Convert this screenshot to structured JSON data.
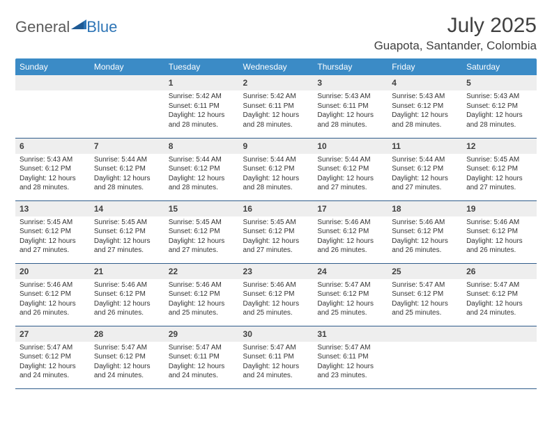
{
  "branding": {
    "word1": "General",
    "word2": "Blue"
  },
  "title": "July 2025",
  "location": "Guapota, Santander, Colombia",
  "colors": {
    "header_bg": "#3b8bc6",
    "header_text": "#ffffff",
    "daynum_bg": "#eeeeee",
    "rule": "#2e5b8a",
    "logo_gray": "#5b5b5b",
    "logo_blue": "#2e75b6",
    "body_text": "#333333",
    "title_text": "#404040"
  },
  "typography": {
    "title_fontsize": 30,
    "location_fontsize": 17,
    "header_fontsize": 12,
    "daynum_fontsize": 12,
    "body_fontsize": 10
  },
  "day_headers": [
    "Sunday",
    "Monday",
    "Tuesday",
    "Wednesday",
    "Thursday",
    "Friday",
    "Saturday"
  ],
  "weeks": [
    [
      {
        "num": "",
        "sunrise": "",
        "sunset": "",
        "daylight": ""
      },
      {
        "num": "",
        "sunrise": "",
        "sunset": "",
        "daylight": ""
      },
      {
        "num": "1",
        "sunrise": "Sunrise: 5:42 AM",
        "sunset": "Sunset: 6:11 PM",
        "daylight": "Daylight: 12 hours and 28 minutes."
      },
      {
        "num": "2",
        "sunrise": "Sunrise: 5:42 AM",
        "sunset": "Sunset: 6:11 PM",
        "daylight": "Daylight: 12 hours and 28 minutes."
      },
      {
        "num": "3",
        "sunrise": "Sunrise: 5:43 AM",
        "sunset": "Sunset: 6:11 PM",
        "daylight": "Daylight: 12 hours and 28 minutes."
      },
      {
        "num": "4",
        "sunrise": "Sunrise: 5:43 AM",
        "sunset": "Sunset: 6:12 PM",
        "daylight": "Daylight: 12 hours and 28 minutes."
      },
      {
        "num": "5",
        "sunrise": "Sunrise: 5:43 AM",
        "sunset": "Sunset: 6:12 PM",
        "daylight": "Daylight: 12 hours and 28 minutes."
      }
    ],
    [
      {
        "num": "6",
        "sunrise": "Sunrise: 5:43 AM",
        "sunset": "Sunset: 6:12 PM",
        "daylight": "Daylight: 12 hours and 28 minutes."
      },
      {
        "num": "7",
        "sunrise": "Sunrise: 5:44 AM",
        "sunset": "Sunset: 6:12 PM",
        "daylight": "Daylight: 12 hours and 28 minutes."
      },
      {
        "num": "8",
        "sunrise": "Sunrise: 5:44 AM",
        "sunset": "Sunset: 6:12 PM",
        "daylight": "Daylight: 12 hours and 28 minutes."
      },
      {
        "num": "9",
        "sunrise": "Sunrise: 5:44 AM",
        "sunset": "Sunset: 6:12 PM",
        "daylight": "Daylight: 12 hours and 28 minutes."
      },
      {
        "num": "10",
        "sunrise": "Sunrise: 5:44 AM",
        "sunset": "Sunset: 6:12 PM",
        "daylight": "Daylight: 12 hours and 27 minutes."
      },
      {
        "num": "11",
        "sunrise": "Sunrise: 5:44 AM",
        "sunset": "Sunset: 6:12 PM",
        "daylight": "Daylight: 12 hours and 27 minutes."
      },
      {
        "num": "12",
        "sunrise": "Sunrise: 5:45 AM",
        "sunset": "Sunset: 6:12 PM",
        "daylight": "Daylight: 12 hours and 27 minutes."
      }
    ],
    [
      {
        "num": "13",
        "sunrise": "Sunrise: 5:45 AM",
        "sunset": "Sunset: 6:12 PM",
        "daylight": "Daylight: 12 hours and 27 minutes."
      },
      {
        "num": "14",
        "sunrise": "Sunrise: 5:45 AM",
        "sunset": "Sunset: 6:12 PM",
        "daylight": "Daylight: 12 hours and 27 minutes."
      },
      {
        "num": "15",
        "sunrise": "Sunrise: 5:45 AM",
        "sunset": "Sunset: 6:12 PM",
        "daylight": "Daylight: 12 hours and 27 minutes."
      },
      {
        "num": "16",
        "sunrise": "Sunrise: 5:45 AM",
        "sunset": "Sunset: 6:12 PM",
        "daylight": "Daylight: 12 hours and 27 minutes."
      },
      {
        "num": "17",
        "sunrise": "Sunrise: 5:46 AM",
        "sunset": "Sunset: 6:12 PM",
        "daylight": "Daylight: 12 hours and 26 minutes."
      },
      {
        "num": "18",
        "sunrise": "Sunrise: 5:46 AM",
        "sunset": "Sunset: 6:12 PM",
        "daylight": "Daylight: 12 hours and 26 minutes."
      },
      {
        "num": "19",
        "sunrise": "Sunrise: 5:46 AM",
        "sunset": "Sunset: 6:12 PM",
        "daylight": "Daylight: 12 hours and 26 minutes."
      }
    ],
    [
      {
        "num": "20",
        "sunrise": "Sunrise: 5:46 AM",
        "sunset": "Sunset: 6:12 PM",
        "daylight": "Daylight: 12 hours and 26 minutes."
      },
      {
        "num": "21",
        "sunrise": "Sunrise: 5:46 AM",
        "sunset": "Sunset: 6:12 PM",
        "daylight": "Daylight: 12 hours and 26 minutes."
      },
      {
        "num": "22",
        "sunrise": "Sunrise: 5:46 AM",
        "sunset": "Sunset: 6:12 PM",
        "daylight": "Daylight: 12 hours and 25 minutes."
      },
      {
        "num": "23",
        "sunrise": "Sunrise: 5:46 AM",
        "sunset": "Sunset: 6:12 PM",
        "daylight": "Daylight: 12 hours and 25 minutes."
      },
      {
        "num": "24",
        "sunrise": "Sunrise: 5:47 AM",
        "sunset": "Sunset: 6:12 PM",
        "daylight": "Daylight: 12 hours and 25 minutes."
      },
      {
        "num": "25",
        "sunrise": "Sunrise: 5:47 AM",
        "sunset": "Sunset: 6:12 PM",
        "daylight": "Daylight: 12 hours and 25 minutes."
      },
      {
        "num": "26",
        "sunrise": "Sunrise: 5:47 AM",
        "sunset": "Sunset: 6:12 PM",
        "daylight": "Daylight: 12 hours and 24 minutes."
      }
    ],
    [
      {
        "num": "27",
        "sunrise": "Sunrise: 5:47 AM",
        "sunset": "Sunset: 6:12 PM",
        "daylight": "Daylight: 12 hours and 24 minutes."
      },
      {
        "num": "28",
        "sunrise": "Sunrise: 5:47 AM",
        "sunset": "Sunset: 6:12 PM",
        "daylight": "Daylight: 12 hours and 24 minutes."
      },
      {
        "num": "29",
        "sunrise": "Sunrise: 5:47 AM",
        "sunset": "Sunset: 6:11 PM",
        "daylight": "Daylight: 12 hours and 24 minutes."
      },
      {
        "num": "30",
        "sunrise": "Sunrise: 5:47 AM",
        "sunset": "Sunset: 6:11 PM",
        "daylight": "Daylight: 12 hours and 24 minutes."
      },
      {
        "num": "31",
        "sunrise": "Sunrise: 5:47 AM",
        "sunset": "Sunset: 6:11 PM",
        "daylight": "Daylight: 12 hours and 23 minutes."
      },
      {
        "num": "",
        "sunrise": "",
        "sunset": "",
        "daylight": ""
      },
      {
        "num": "",
        "sunrise": "",
        "sunset": "",
        "daylight": ""
      }
    ]
  ]
}
